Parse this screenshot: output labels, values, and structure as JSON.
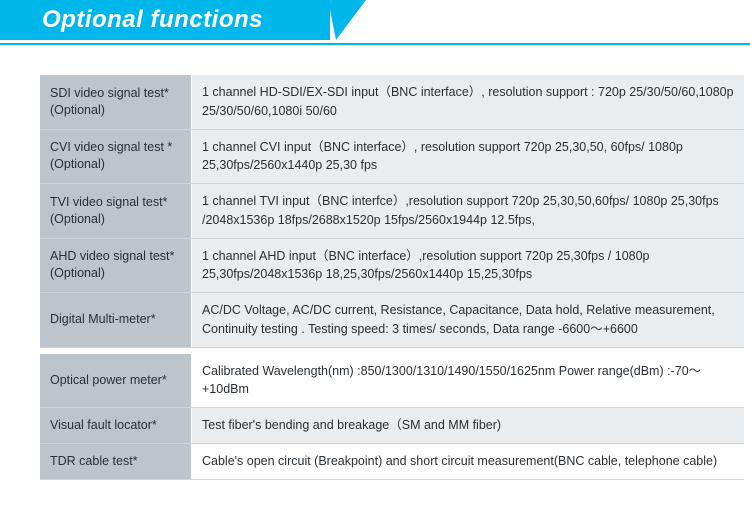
{
  "header": {
    "title": "Optional functions"
  },
  "rows": [
    {
      "label": "SDI video signal test* (Optional)",
      "value": "1 channel HD-SDI/EX-SDI input（BNC interface）, resolution support : 720p 25/30/50/60,1080p 25/30/50/60,1080i 50/60",
      "style": "shaded"
    },
    {
      "label": "CVI video signal test * (Optional)",
      "value": "1 channel CVI input（BNC interface）, resolution support 720p 25,30,50, 60fps/ 1080p 25,30fps/2560x1440p 25,30 fps",
      "style": "shaded"
    },
    {
      "label": "TVI video signal test* (Optional)",
      "value": "1 channel TVI input（BNC interfce）,resolution support 720p 25,30,50,60fps/ 1080p 25,30fps /2048x1536p 18fps/2688x1520p 15fps/2560x1944p 12.5fps,",
      "style": "shaded"
    },
    {
      "label": "AHD video signal test* (Optional)",
      "value": "1 channel AHD input（BNC interface）,resolution support 720p 25,30fps / 1080p 25,30fps/2048x1536p 18,25,30fps/2560x1440p 15,25,30fps",
      "style": "shaded"
    },
    {
      "label": "Digital Multi-meter*",
      "value": "AC/DC Voltage, AC/DC current, Resistance, Capacitance, Data hold, Relative measurement, Continuity testing . Testing speed: 3 times/ seconds, Data range -6600～+6600",
      "style": "shaded"
    },
    {
      "label": "Optical power meter*",
      "value": "Calibrated Wavelength(nm) :850/1300/1310/1490/1550/1625nm Power range(dBm) :-70～+10dBm",
      "style": "white"
    },
    {
      "label": "Visual fault locator*",
      "value": "Test fiber's bending and breakage（SM and MM fiber)",
      "style": "shaded"
    },
    {
      "label": "TDR cable test*",
      "value": "Cable's open circuit (Breakpoint) and short circuit measurement(BNC cable, telephone cable)",
      "style": "white"
    }
  ],
  "colors": {
    "accent": "#00b7eb",
    "label_bg": "#bcc5cc",
    "value_bg_shaded": "#e9edf0",
    "value_bg_white": "#ffffff",
    "text": "#2a2f33",
    "divider": "#cfd4d8"
  }
}
